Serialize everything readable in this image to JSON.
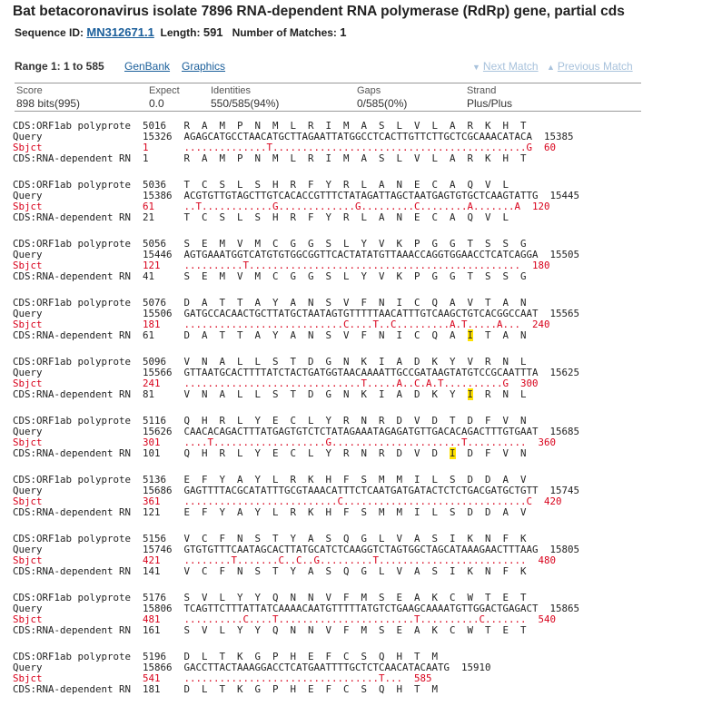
{
  "title": "Bat betacoronavirus isolate 7896 RNA-dependent RNA polymerase (RdRp) gene, partial cds",
  "sequence": {
    "id_label": "Sequence ID:",
    "id_value": "MN312671.1",
    "length_label": "Length:",
    "length_value": "591",
    "matches_label": "Number of Matches:",
    "matches_value": "1"
  },
  "range": {
    "label": "Range 1: 1 to 585",
    "genbank_link": "GenBank",
    "graphics_link": "Graphics",
    "next_match": "Next Match",
    "previous_match": "Previous Match"
  },
  "stats": {
    "score_label": "Score",
    "score_value": "898 bits(995)",
    "expect_label": "Expect",
    "expect_value": "0.0",
    "identities_label": "Identities",
    "identities_value": "550/585(94%)",
    "gaps_label": "Gaps",
    "gaps_value": "0/585(0%)",
    "strand_label": "Strand",
    "strand_value": "Plus/Plus"
  },
  "colors": {
    "link": "#1a5e9a",
    "mismatch": "#d8001a",
    "highlight": "#ffe200",
    "disabled_link": "#a8c2dc"
  },
  "blocks": [
    {
      "cds1": "CDS:ORF1ab polyprote  5016   R  A  M  P  N  M  L  R  I  M  A  S  L  V  L  A  R  K  H  T",
      "query": "Query                 15326  AGAGCATGCCTAACATGCTTAGAATTATGGCCTCACTTGTTCTTGCTCGCAAACATACA  15385",
      "sbjct": "Sbjct                 1      ..............T...........................................G  60",
      "cds2": "CDS:RNA-dependent RN  1      R  A  M  P  N  M  L  R  I  M  A  S  L  V  L  A  R  K  H  T"
    },
    {
      "cds1": "CDS:ORF1ab polyprote  5036   T  C  S  L  S  H  R  F  Y  R  L  A  N  E  C  A  Q  V  L",
      "query": "Query                 15386  ACGTGTTGTAGCTTGTCACACCGTTTCTATAGATTAGCTAATGAGTGTGCTCAAGTATTG  15445",
      "sbjct": "Sbjct                 61     ..T............G.............G.........C........A.......A  120",
      "cds2": "CDS:RNA-dependent RN  21     T  C  S  L  S  H  R  F  Y  R  L  A  N  E  C  A  Q  V  L"
    },
    {
      "cds1": "CDS:ORF1ab polyprote  5056   S  E  M  V  M  C  G  G  S  L  Y  V  K  P  G  G  T  S  S  G",
      "query": "Query                 15446  AGTGAAATGGTCATGTGTGGCGGTTCACTATATGTTAAACCAGGTGGAACCTCATCAGGA  15505",
      "sbjct": "Sbjct                 121    ..........T..............................................  180",
      "cds2": "CDS:RNA-dependent RN  41     S  E  M  V  M  C  G  G  S  L  Y  V  K  P  G  G  T  S  S  G"
    },
    {
      "cds1": "CDS:ORF1ab polyprote  5076   D  A  T  T  A  Y  A  N  S  V  F  N  I  C  Q  A  V  T  A  N",
      "query": "Query                 15506  GATGCCACAACTGCTTATGCTAATAGTGTTTTTAACATTTGTCAAGCTGTCACGGCCAAT  15565",
      "sbjct": "Sbjct                 181    ...........................C....T..C.........A.T.....A...  240",
      "cds2a": "CDS:RNA-dependent RN  61     D  A  T  T  A  Y  A  N  S  V  F  N  I  C  Q  A  ",
      "cds2hl": "I",
      "cds2b": "  T  A  N"
    },
    {
      "cds1": "CDS:ORF1ab polyprote  5096   V  N  A  L  L  S  T  D  G  N  K  I  A  D  K  Y  V  R  N  L",
      "query": "Query                 15566  GTTAATGCACTTTTATCTACTGATGGTAACAAAATTGCCGATAAGTATGTCCGCAATTTA  15625",
      "sbjct": "Sbjct                 241    ..............................T.....A..C.A.T..........G  300",
      "cds2a": "CDS:RNA-dependent RN  81     V  N  A  L  L  S  T  D  G  N  K  I  A  D  K  Y  ",
      "cds2hl": "I",
      "cds2b": "  R  N  L"
    },
    {
      "cds1": "CDS:ORF1ab polyprote  5116   Q  H  R  L  Y  E  C  L  Y  R  N  R  D  V  D  T  D  F  V  N",
      "query": "Query                 15626  CAACACAGACTTTATGAGTGTCTCTATAGAAATAGAGATGTTGACACAGACTTTGTGAAT  15685",
      "sbjct": "Sbjct                 301    ....T...................G......................T..........  360",
      "cds2a": "CDS:RNA-dependent RN  101    Q  H  R  L  Y  E  C  L  Y  R  N  R  D  V  D  ",
      "cds2hl": "I",
      "cds2b": "  D  F  V  N"
    },
    {
      "cds1": "CDS:ORF1ab polyprote  5136   E  F  Y  A  Y  L  R  K  H  F  S  M  M  I  L  S  D  D  A  V",
      "query": "Query                 15686  GAGTTTTACGCATATTTGCGTAAACATTTCTCAATGATGATACTCTCTGACGATGCTGTT  15745",
      "sbjct": "Sbjct                 361    ..........................C...............................C  420",
      "cds2": "CDS:RNA-dependent RN  121    E  F  Y  A  Y  L  R  K  H  F  S  M  M  I  L  S  D  D  A  V"
    },
    {
      "cds1": "CDS:ORF1ab polyprote  5156   V  C  F  N  S  T  Y  A  S  Q  G  L  V  A  S  I  K  N  F  K",
      "query": "Query                 15746  GTGTGTTTCAATAGCACTTATGCATCTCAAGGTCTAGTGGCTAGCATAAAGAACTTTAAG  15805",
      "sbjct": "Sbjct                 421    ........T.......C..C..G.........T.........................  480",
      "cds2": "CDS:RNA-dependent RN  141    V  C  F  N  S  T  Y  A  S  Q  G  L  V  A  S  I  K  N  F  K"
    },
    {
      "cds1": "CDS:ORF1ab polyprote  5176   S  V  L  Y  Y  Q  N  N  V  F  M  S  E  A  K  C  W  T  E  T",
      "query": "Query                 15806  TCAGTTCTTTATTATCAAAACAATGTTTTTATGTCTGAAGCAAAATGTTGGACTGAGACT  15865",
      "sbjct": "Sbjct                 481    ..........C....T.......................T..........C.......  540",
      "cds2": "CDS:RNA-dependent RN  161    S  V  L  Y  Y  Q  N  N  V  F  M  S  E  A  K  C  W  T  E  T"
    },
    {
      "cds1": "CDS:ORF1ab polyprote  5196   D  L  T  K  G  P  H  E  F  C  S  Q  H  T  M",
      "query": "Query                 15866  GACCTTACTAAAGGACCTCATGAATTTTGCTCTCAACATACAATG  15910",
      "sbjct": "Sbjct                 541    .................................T...  585",
      "cds2": "CDS:RNA-dependent RN  181    D  L  T  K  G  P  H  E  F  C  S  Q  H  T  M"
    }
  ]
}
